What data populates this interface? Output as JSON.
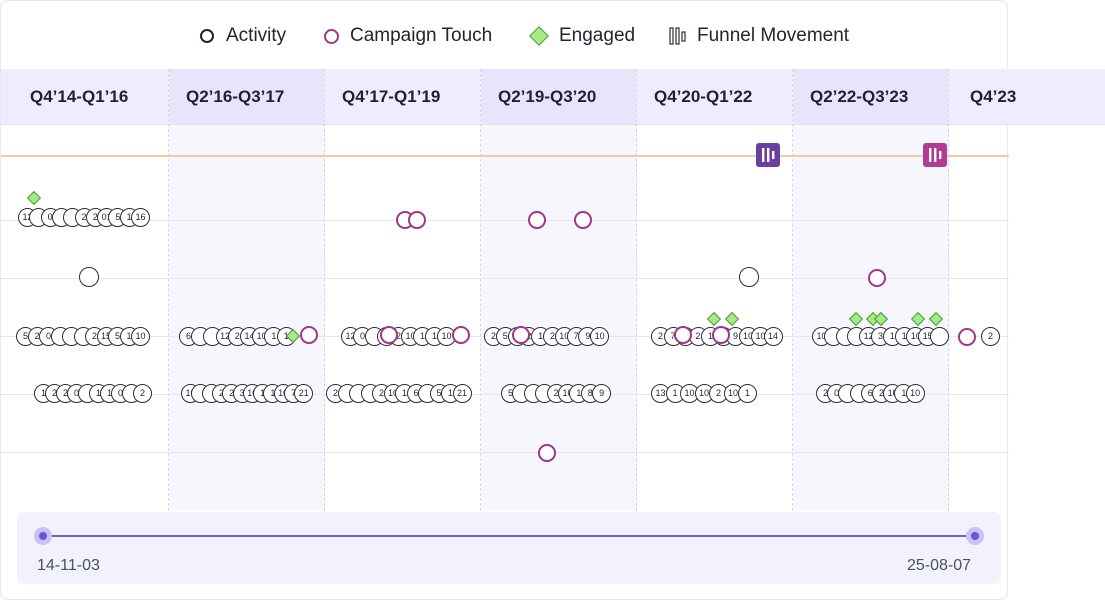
{
  "legend": {
    "activity": "Activity",
    "campaign_touch": "Campaign Touch",
    "engaged": "Engaged",
    "funnel_movement": "Funnel Movement"
  },
  "columns": [
    {
      "label": "Q4’14-Q1’16"
    },
    {
      "label": "Q2’16-Q3’17"
    },
    {
      "label": "Q4’17-Q1’19"
    },
    {
      "label": "Q2’19-Q3’20"
    },
    {
      "label": "Q4’20-Q1’22"
    },
    {
      "label": "Q2’22-Q3’23"
    },
    {
      "label": "Q4’23"
    }
  ],
  "range": {
    "start": "14-11-03",
    "end": "25-08-07"
  },
  "colors": {
    "campaign": "#a0358f",
    "engaged_fill": "#a6ea86",
    "funnel_1": "#6a3fa0",
    "funnel_2": "#b03c93",
    "accent": "#6655d8"
  },
  "lanes": {
    "lane1": [
      {
        "t": "12"
      },
      {
        "t": ""
      },
      {
        "t": "0"
      },
      {
        "t": ""
      },
      {
        "t": ""
      },
      {
        "t": "2"
      },
      {
        "t": "2"
      },
      {
        "t": "01"
      },
      {
        "t": "5"
      },
      {
        "t": "1"
      },
      {
        "t": "16"
      }
    ],
    "lane3_c1": [
      {
        "t": "5"
      },
      {
        "t": "2"
      },
      {
        "t": "0"
      },
      {
        "t": ""
      },
      {
        "t": ""
      },
      {
        "t": ""
      },
      {
        "t": "2"
      },
      {
        "t": "15"
      },
      {
        "t": "5"
      },
      {
        "t": "1"
      },
      {
        "t": "10"
      }
    ],
    "lane3_c2": [
      {
        "t": "6"
      },
      {
        "t": ""
      },
      {
        "t": ""
      },
      {
        "t": "12"
      },
      {
        "t": "2"
      },
      {
        "t": "14"
      },
      {
        "t": "10"
      },
      {
        "t": "1"
      },
      {
        "t": "1"
      }
    ],
    "lane3_c3": [
      {
        "t": "12"
      },
      {
        "t": "0"
      },
      {
        "t": ""
      },
      {
        "t": ""
      },
      {
        "t": "2"
      },
      {
        "t": "10"
      },
      {
        "t": "1"
      },
      {
        "t": "1"
      },
      {
        "t": "10"
      }
    ],
    "lane3_c4": [
      {
        "t": "2"
      },
      {
        "t": "5"
      },
      {
        "t": ""
      },
      {
        "t": "2"
      },
      {
        "t": "1"
      },
      {
        "t": "2"
      },
      {
        "t": "10"
      },
      {
        "t": "7"
      },
      {
        "t": "9"
      },
      {
        "t": "10"
      }
    ],
    "lane3_c5": [
      {
        "t": "2"
      },
      {
        "t": "7"
      },
      {
        "t": ""
      },
      {
        "t": "2"
      },
      {
        "t": "1"
      },
      {
        "t": ""
      },
      {
        "t": "9"
      },
      {
        "t": "10"
      },
      {
        "t": "10"
      },
      {
        "t": "14"
      }
    ],
    "lane3_c6": [
      {
        "t": "10"
      },
      {
        "t": ""
      },
      {
        "t": ""
      },
      {
        "t": ""
      },
      {
        "t": "12"
      },
      {
        "t": "3"
      },
      {
        "t": "1"
      },
      {
        "t": "1"
      },
      {
        "t": "10"
      },
      {
        "t": "15"
      },
      {
        "t": ""
      }
    ],
    "lane3_c7": [
      {
        "t": "2"
      }
    ],
    "lane4_c1": [
      {
        "t": "1"
      },
      {
        "t": "2"
      },
      {
        "t": "2"
      },
      {
        "t": "0"
      },
      {
        "t": ""
      },
      {
        "t": "1"
      },
      {
        "t": "1"
      },
      {
        "t": "0"
      },
      {
        "t": ""
      },
      {
        "t": "2"
      }
    ],
    "lane4_c2": [
      {
        "t": "10"
      },
      {
        "t": ""
      },
      {
        "t": ""
      },
      {
        "t": "2"
      },
      {
        "t": "2"
      },
      {
        "t": "3"
      },
      {
        "t": "10"
      },
      {
        "t": "1"
      },
      {
        "t": "1"
      },
      {
        "t": "10"
      },
      {
        "t": "7"
      },
      {
        "t": "21"
      }
    ],
    "lane4_c3": [
      {
        "t": "2"
      },
      {
        "t": ""
      },
      {
        "t": ""
      },
      {
        "t": ""
      },
      {
        "t": "2"
      },
      {
        "t": "10"
      },
      {
        "t": "1"
      },
      {
        "t": "6"
      },
      {
        "t": ""
      },
      {
        "t": "5"
      },
      {
        "t": "1"
      },
      {
        "t": "21"
      }
    ],
    "lane4_c4": [
      {
        "t": "5"
      },
      {
        "t": ""
      },
      {
        "t": ""
      },
      {
        "t": ""
      },
      {
        "t": "2"
      },
      {
        "t": "10"
      },
      {
        "t": "1"
      },
      {
        "t": "8"
      },
      {
        "t": "9"
      }
    ],
    "lane4_c5": [
      {
        "t": "13"
      },
      {
        "t": "1"
      },
      {
        "t": "10"
      },
      {
        "t": "10"
      },
      {
        "t": "2"
      },
      {
        "t": "10"
      },
      {
        "t": "1"
      }
    ],
    "lane4_c6": [
      {
        "t": "2"
      },
      {
        "t": "0"
      },
      {
        "t": ""
      },
      {
        "t": ""
      },
      {
        "t": "6"
      },
      {
        "t": "2"
      },
      {
        "t": "10"
      },
      {
        "t": "1"
      },
      {
        "t": "10"
      }
    ]
  }
}
